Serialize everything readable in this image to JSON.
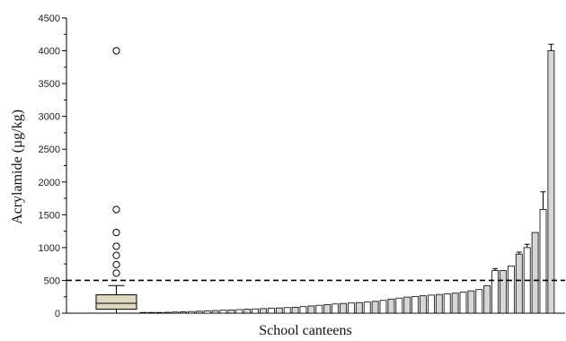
{
  "chart_data": {
    "type": "bar",
    "title": "",
    "xlabel": "School canteens",
    "ylabel": "Acrylamide  (µg/kg)",
    "ylim": [
      0,
      4500
    ],
    "yticks": [
      0,
      500,
      1000,
      1500,
      2000,
      2500,
      3000,
      3500,
      4000,
      4500
    ],
    "grid": false,
    "reference_line": {
      "value": 500,
      "style": "dashed"
    },
    "boxplot": {
      "whisker_low": 5,
      "q1": 60,
      "median": 150,
      "q3": 280,
      "whisker_high": 420,
      "outliers": [
        610,
        740,
        880,
        1020,
        1230,
        1580,
        4000
      ],
      "fill": "#ddd8bf"
    },
    "bars": {
      "values": [
        3,
        6,
        10,
        13,
        17,
        21,
        25,
        30,
        35,
        40,
        45,
        50,
        55,
        60,
        65,
        70,
        75,
        80,
        85,
        90,
        100,
        110,
        120,
        130,
        140,
        148,
        155,
        162,
        170,
        180,
        195,
        215,
        230,
        245,
        255,
        265,
        275,
        285,
        295,
        305,
        320,
        340,
        360,
        420,
        650,
        650,
        720,
        900,
        1000,
        1230,
        1580,
        4000
      ],
      "errors": [
        0,
        0,
        0,
        0,
        0,
        0,
        0,
        0,
        0,
        0,
        0,
        0,
        0,
        0,
        0,
        0,
        0,
        0,
        0,
        0,
        0,
        0,
        0,
        0,
        0,
        0,
        0,
        0,
        0,
        0,
        0,
        0,
        0,
        0,
        0,
        0,
        0,
        0,
        0,
        0,
        0,
        0,
        0,
        0,
        30,
        0,
        0,
        30,
        50,
        0,
        270,
        100
      ],
      "fills": [
        "#ffffff",
        "#d6d6d6"
      ]
    }
  }
}
